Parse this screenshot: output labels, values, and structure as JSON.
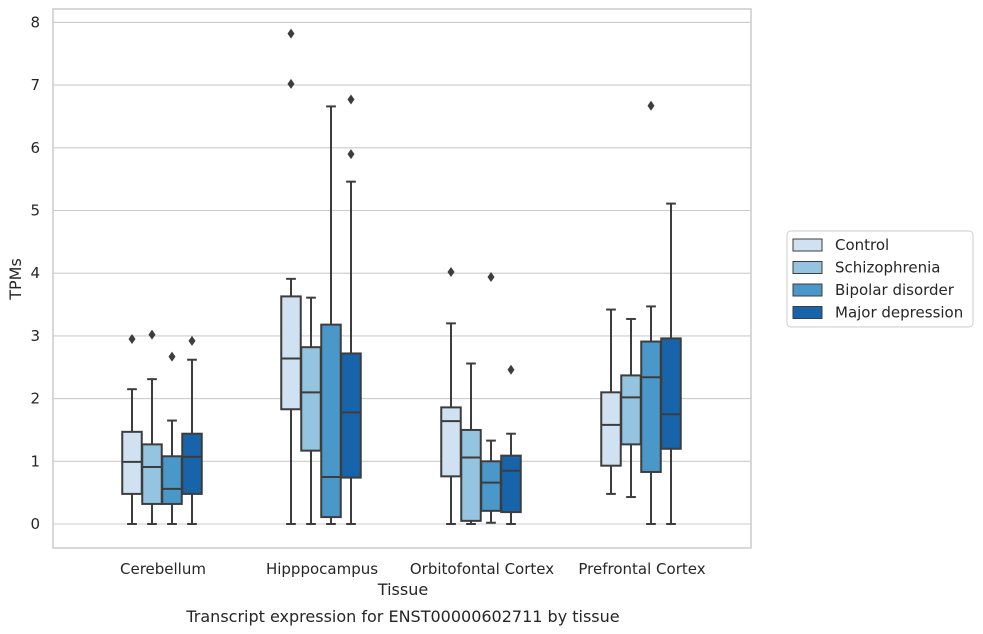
{
  "chart_data": {
    "type": "boxplot",
    "title": "",
    "caption": "Transcript expression for ENST00000602711 by tissue",
    "xlabel": "Tissue",
    "ylabel": "TPMs",
    "ylim": [
      -0.38,
      8.22
    ],
    "yticks": [
      0,
      1,
      2,
      3,
      4,
      5,
      6,
      7,
      8
    ],
    "grid": "horizontal",
    "legend_position": "right",
    "categories": [
      "Cerebellum",
      "Hipppocampus",
      "Orbitofontal Cortex",
      "Prefrontal Cortex"
    ],
    "series": [
      {
        "name": "Control",
        "color": "#d0e1f2",
        "boxes": [
          {
            "whislo": 0.0,
            "q1": 0.48,
            "med": 0.99,
            "q3": 1.47,
            "whishi": 2.15,
            "fliers": [
              2.95
            ]
          },
          {
            "whislo": 0.0,
            "q1": 1.83,
            "med": 2.64,
            "q3": 3.63,
            "whishi": 3.91,
            "fliers": [
              7.02,
              7.82
            ]
          },
          {
            "whislo": 0.0,
            "q1": 0.76,
            "med": 1.64,
            "q3": 1.86,
            "whishi": 3.2,
            "fliers": [
              4.02
            ]
          },
          {
            "whislo": 0.48,
            "q1": 0.93,
            "med": 1.58,
            "q3": 2.1,
            "whishi": 3.42,
            "fliers": []
          }
        ]
      },
      {
        "name": "Schizophrenia",
        "color": "#94c4df",
        "boxes": [
          {
            "whislo": 0.0,
            "q1": 0.32,
            "med": 0.91,
            "q3": 1.27,
            "whishi": 2.31,
            "fliers": [
              3.02
            ]
          },
          {
            "whislo": 0.0,
            "q1": 1.17,
            "med": 2.1,
            "q3": 2.82,
            "whishi": 3.61,
            "fliers": []
          },
          {
            "whislo": 0.0,
            "q1": 0.05,
            "med": 1.06,
            "q3": 1.5,
            "whishi": 2.56,
            "fliers": []
          },
          {
            "whislo": 0.43,
            "q1": 1.27,
            "med": 2.02,
            "q3": 2.37,
            "whishi": 3.27,
            "fliers": []
          }
        ]
      },
      {
        "name": "Bipolar disorder",
        "color": "#4a98c9",
        "boxes": [
          {
            "whislo": 0.0,
            "q1": 0.32,
            "med": 0.56,
            "q3": 1.08,
            "whishi": 1.65,
            "fliers": [
              2.67
            ]
          },
          {
            "whislo": 0.0,
            "q1": 0.11,
            "med": 0.75,
            "q3": 3.18,
            "whishi": 6.66,
            "fliers": []
          },
          {
            "whislo": 0.02,
            "q1": 0.21,
            "med": 0.66,
            "q3": 1.0,
            "whishi": 1.33,
            "fliers": [
              3.94
            ]
          },
          {
            "whislo": 0.0,
            "q1": 0.83,
            "med": 2.34,
            "q3": 2.91,
            "whishi": 3.47,
            "fliers": [
              6.67
            ]
          }
        ]
      },
      {
        "name": "Major depression",
        "color": "#1764ab",
        "boxes": [
          {
            "whislo": 0.0,
            "q1": 0.48,
            "med": 1.07,
            "q3": 1.44,
            "whishi": 2.62,
            "fliers": [
              2.92
            ]
          },
          {
            "whislo": 0.0,
            "q1": 0.74,
            "med": 1.78,
            "q3": 2.72,
            "whishi": 5.46,
            "fliers": [
              5.9,
              6.77
            ]
          },
          {
            "whislo": 0.0,
            "q1": 0.19,
            "med": 0.85,
            "q3": 1.09,
            "whishi": 1.44,
            "fliers": [
              2.46
            ]
          },
          {
            "whislo": 0.0,
            "q1": 1.2,
            "med": 1.75,
            "q3": 2.96,
            "whishi": 5.11,
            "fliers": []
          }
        ]
      }
    ]
  }
}
